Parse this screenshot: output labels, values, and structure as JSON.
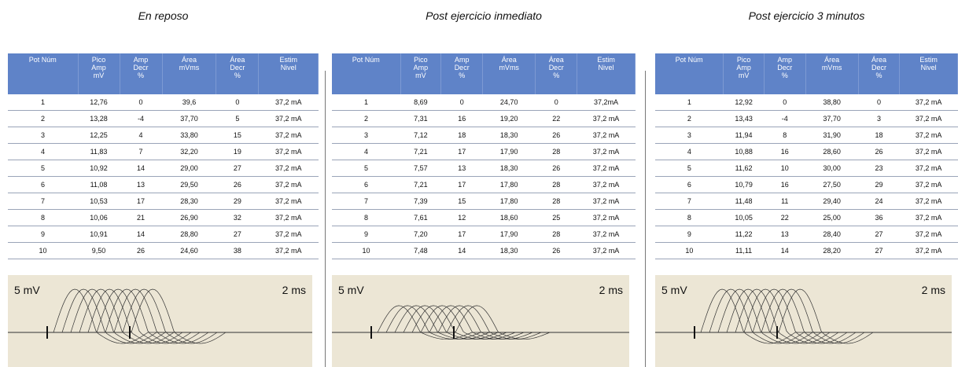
{
  "panels": [
    {
      "title": "En reposo",
      "scale_v": "5 mV",
      "scale_t": "2 ms",
      "table": {
        "header": [
          [
            "Pot Núm"
          ],
          [
            "Pico",
            "Amp",
            "mV"
          ],
          [
            "Amp",
            "Decr",
            "%"
          ],
          [
            "Área",
            "mVms"
          ],
          [
            "Área",
            "Decr",
            "%"
          ],
          [
            "Estim",
            "Nivel"
          ]
        ],
        "rows": [
          [
            "1",
            "12,76",
            "0",
            "39,6",
            "0",
            "37,2 mA"
          ],
          [
            "2",
            "13,28",
            "-4",
            "37,70",
            "5",
            "37,2 mA"
          ],
          [
            "3",
            "12,25",
            "4",
            "33,80",
            "15",
            "37,2 mA"
          ],
          [
            "4",
            "11,83",
            "7",
            "32,20",
            "19",
            "37,2 mA"
          ],
          [
            "5",
            "10,92",
            "14",
            "29,00",
            "27",
            "37,2 mA"
          ],
          [
            "6",
            "11,08",
            "13",
            "29,50",
            "26",
            "37,2 mA"
          ],
          [
            "7",
            "10,53",
            "17",
            "28,30",
            "29",
            "37,2 mA"
          ],
          [
            "8",
            "10,06",
            "21",
            "26,90",
            "32",
            "37,2 mA"
          ],
          [
            "9",
            "10,91",
            "14",
            "28,80",
            "27",
            "37,2 mA"
          ],
          [
            "10",
            "9,50",
            "26",
            "24,60",
            "38",
            "37,2 mA"
          ]
        ]
      }
    },
    {
      "title": "Post ejercicio inmediato",
      "scale_v": "5 mV",
      "scale_t": "2 ms",
      "table": {
        "header": [
          [
            "Pot Núm"
          ],
          [
            "Pico",
            "Amp",
            "mV"
          ],
          [
            "Amp",
            "Decr",
            "%"
          ],
          [
            "Área",
            "mVms"
          ],
          [
            "Área",
            "Decr",
            "%"
          ],
          [
            "Estim",
            "Nivel"
          ]
        ],
        "rows": [
          [
            "1",
            "8,69",
            "0",
            "24,70",
            "0",
            "37,2mA"
          ],
          [
            "2",
            "7,31",
            "16",
            "19,20",
            "22",
            "37,2 mA"
          ],
          [
            "3",
            "7,12",
            "18",
            "18,30",
            "26",
            "37,2 mA"
          ],
          [
            "4",
            "7,21",
            "17",
            "17,90",
            "28",
            "37,2 mA"
          ],
          [
            "5",
            "7,57",
            "13",
            "18,30",
            "26",
            "37,2 mA"
          ],
          [
            "6",
            "7,21",
            "17",
            "17,80",
            "28",
            "37,2 mA"
          ],
          [
            "7",
            "7,39",
            "15",
            "17,80",
            "28",
            "37,2 mA"
          ],
          [
            "8",
            "7,61",
            "12",
            "18,60",
            "25",
            "37,2 mA"
          ],
          [
            "9",
            "7,20",
            "17",
            "17,90",
            "28",
            "37,2 mA"
          ],
          [
            "10",
            "7,48",
            "14",
            "18,30",
            "26",
            "37,2 mA"
          ]
        ]
      }
    },
    {
      "title": "Post ejercicio 3 minutos",
      "scale_v": "5 mV",
      "scale_t": "2 ms",
      "table": {
        "header": [
          [
            "Pot Núm"
          ],
          [
            "Pico",
            "Amp",
            "mV"
          ],
          [
            "Amp",
            "Decr",
            "%"
          ],
          [
            "Área",
            "mVms"
          ],
          [
            "Área",
            "Decr",
            "%"
          ],
          [
            "Estim",
            "Nivel"
          ]
        ],
        "rows": [
          [
            "1",
            "12,92",
            "0",
            "38,80",
            "0",
            "37,2 mA"
          ],
          [
            "2",
            "13,43",
            "-4",
            "37,70",
            "3",
            "37,2 mA"
          ],
          [
            "3",
            "11,94",
            "8",
            "31,90",
            "18",
            "37,2 mA"
          ],
          [
            "4",
            "10,88",
            "16",
            "28,60",
            "26",
            "37,2 mA"
          ],
          [
            "5",
            "11,62",
            "10",
            "30,00",
            "23",
            "37,2 mA"
          ],
          [
            "6",
            "10,79",
            "16",
            "27,50",
            "29",
            "37,2 mA"
          ],
          [
            "7",
            "11,48",
            "11",
            "29,40",
            "24",
            "37,2 mA"
          ],
          [
            "8",
            "10,05",
            "22",
            "25,00",
            "36",
            "37,2 mA"
          ],
          [
            "9",
            "11,22",
            "13",
            "28,40",
            "27",
            "37,2 mA"
          ],
          [
            "10",
            "11,11",
            "14",
            "28,20",
            "27",
            "37,2 mA"
          ]
        ]
      }
    }
  ]
}
